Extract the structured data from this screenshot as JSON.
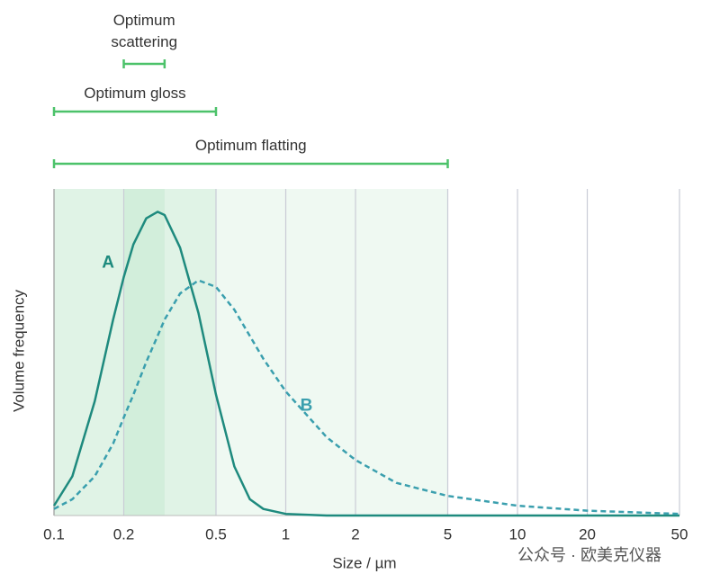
{
  "chart_data": {
    "type": "line",
    "xlabel": "Size / µm",
    "ylabel": "Volume frequency",
    "log_x": true,
    "xlim": [
      0.1,
      50
    ],
    "xticks": [
      0.1,
      0.2,
      0.5,
      1,
      2,
      5,
      10,
      20,
      50
    ],
    "ylim": [
      0,
      100
    ],
    "grid": true,
    "x": [
      0.1,
      0.12,
      0.15,
      0.18,
      0.2,
      0.22,
      0.25,
      0.28,
      0.3,
      0.35,
      0.42,
      0.5,
      0.6,
      0.7,
      0.8,
      1,
      1.5,
      2,
      3,
      5,
      10,
      20,
      50
    ],
    "series": [
      {
        "name": "A",
        "color": "#1e8a7e",
        "dashed": false,
        "values": [
          3,
          12,
          35,
          60,
          73,
          83,
          91,
          93,
          92,
          82,
          62,
          37,
          15,
          5,
          2,
          0.5,
          0,
          0,
          0,
          0,
          0,
          0,
          0
        ]
      },
      {
        "name": "B",
        "color": "#3a9fae",
        "dashed": true,
        "values": [
          2,
          5,
          12,
          22,
          30,
          37,
          47,
          55,
          60,
          68,
          72,
          70,
          63,
          55,
          48,
          38,
          24,
          17,
          10,
          6,
          3,
          1.5,
          0.5
        ]
      }
    ],
    "ranges": [
      {
        "label": "Optimum scattering",
        "from": 0.2,
        "to": 0.3
      },
      {
        "label": "Optimum gloss",
        "from": 0.1,
        "to": 0.5
      },
      {
        "label": "Optimum flatting",
        "from": 0.1,
        "to": 5
      }
    ],
    "range_color": "#4cc26a",
    "watermark": "公众号 · 欧美克仪器"
  }
}
